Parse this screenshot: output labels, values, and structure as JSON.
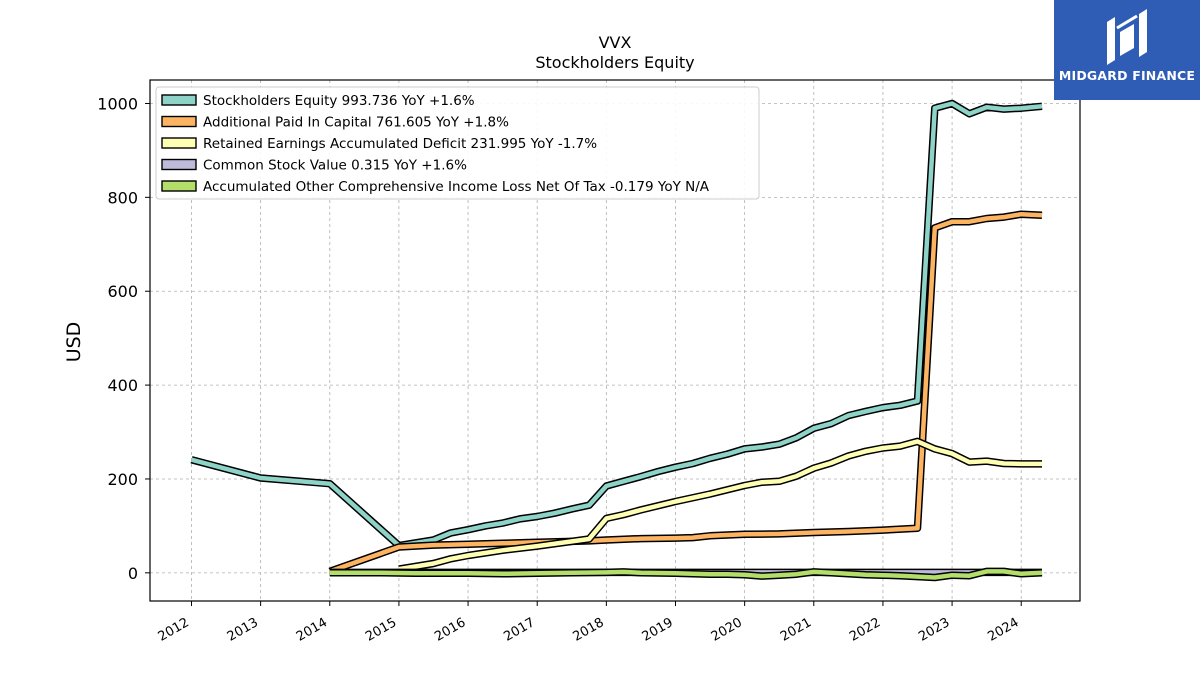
{
  "chart_data": {
    "type": "line",
    "title": "VVX",
    "subtitle": "Stockholders  Equity",
    "xlabel": "",
    "ylabel": "USD",
    "xlim": [
      2011.4,
      2024.85
    ],
    "ylim": [
      -60,
      1050
    ],
    "x_ticks": [
      2012,
      2013,
      2014,
      2015,
      2016,
      2017,
      2018,
      2019,
      2020,
      2021,
      2022,
      2023,
      2024
    ],
    "y_ticks": [
      0,
      200,
      400,
      600,
      800,
      1000
    ],
    "grid": true,
    "legend_position": "top-left",
    "series": [
      {
        "name": "Stockholders Equity  993.736 YoY +1.6%",
        "color": "#8dd3c7",
        "points": [
          [
            2012.0,
            241
          ],
          [
            2013.0,
            202
          ],
          [
            2014.0,
            190
          ],
          [
            2015.0,
            58
          ],
          [
            2015.5,
            70
          ],
          [
            2015.75,
            85
          ],
          [
            2016.0,
            92
          ],
          [
            2016.25,
            100
          ],
          [
            2016.5,
            106
          ],
          [
            2016.75,
            115
          ],
          [
            2017.0,
            120
          ],
          [
            2017.25,
            127
          ],
          [
            2017.5,
            136
          ],
          [
            2017.75,
            144
          ],
          [
            2018.0,
            185
          ],
          [
            2018.25,
            195
          ],
          [
            2018.5,
            205
          ],
          [
            2018.75,
            216
          ],
          [
            2019.0,
            225
          ],
          [
            2019.25,
            233
          ],
          [
            2019.5,
            244
          ],
          [
            2019.75,
            253
          ],
          [
            2020.0,
            264
          ],
          [
            2020.25,
            268
          ],
          [
            2020.5,
            274
          ],
          [
            2020.75,
            288
          ],
          [
            2021.0,
            308
          ],
          [
            2021.25,
            318
          ],
          [
            2021.5,
            335
          ],
          [
            2021.75,
            344
          ],
          [
            2022.0,
            352
          ],
          [
            2022.25,
            357
          ],
          [
            2022.5,
            366
          ],
          [
            2022.75,
            990
          ],
          [
            2023.0,
            1000
          ],
          [
            2023.25,
            978
          ],
          [
            2023.5,
            992
          ],
          [
            2023.75,
            988
          ],
          [
            2024.0,
            990
          ],
          [
            2024.3,
            994
          ]
        ]
      },
      {
        "name": "Additional Paid In Capital  761.605 YoY +1.8%",
        "color": "#fdb462",
        "points": [
          [
            2014.0,
            3
          ],
          [
            2015.0,
            55
          ],
          [
            2015.5,
            59
          ],
          [
            2016.0,
            61
          ],
          [
            2016.5,
            63
          ],
          [
            2017.0,
            65
          ],
          [
            2017.5,
            67
          ],
          [
            2017.75,
            68
          ],
          [
            2018.0,
            70
          ],
          [
            2018.5,
            73
          ],
          [
            2019.0,
            74
          ],
          [
            2019.25,
            75
          ],
          [
            2019.5,
            79
          ],
          [
            2020.0,
            82
          ],
          [
            2020.5,
            83
          ],
          [
            2021.0,
            86
          ],
          [
            2021.5,
            88
          ],
          [
            2022.0,
            91
          ],
          [
            2022.5,
            95
          ],
          [
            2022.75,
            735
          ],
          [
            2023.0,
            748
          ],
          [
            2023.25,
            748
          ],
          [
            2023.5,
            755
          ],
          [
            2023.75,
            758
          ],
          [
            2024.0,
            764
          ],
          [
            2024.3,
            762
          ]
        ]
      },
      {
        "name": "Retained Earnings Accumulated Deficit  231.995 YoY -1.7%",
        "color": "#ffffb3",
        "points": [
          [
            2015.0,
            8
          ],
          [
            2015.5,
            20
          ],
          [
            2015.75,
            30
          ],
          [
            2016.0,
            37
          ],
          [
            2016.5,
            48
          ],
          [
            2017.0,
            57
          ],
          [
            2017.5,
            67
          ],
          [
            2017.75,
            72
          ],
          [
            2018.0,
            116
          ],
          [
            2018.25,
            124
          ],
          [
            2018.5,
            134
          ],
          [
            2019.0,
            152
          ],
          [
            2019.5,
            168
          ],
          [
            2020.0,
            186
          ],
          [
            2020.25,
            193
          ],
          [
            2020.5,
            195
          ],
          [
            2020.75,
            206
          ],
          [
            2021.0,
            223
          ],
          [
            2021.25,
            234
          ],
          [
            2021.5,
            249
          ],
          [
            2021.75,
            259
          ],
          [
            2022.0,
            266
          ],
          [
            2022.25,
            270
          ],
          [
            2022.5,
            280
          ],
          [
            2022.75,
            264
          ],
          [
            2023.0,
            254
          ],
          [
            2023.25,
            236
          ],
          [
            2023.5,
            238
          ],
          [
            2023.75,
            233
          ],
          [
            2024.0,
            232
          ],
          [
            2024.3,
            232
          ]
        ]
      },
      {
        "name": "Common Stock Value  0.315 YoY +1.6%",
        "color": "#bebada",
        "points": [
          [
            2014.0,
            1
          ],
          [
            2015.0,
            1
          ],
          [
            2016.0,
            1
          ],
          [
            2017.0,
            1
          ],
          [
            2018.0,
            1
          ],
          [
            2019.0,
            1
          ],
          [
            2020.0,
            1
          ],
          [
            2021.0,
            1
          ],
          [
            2022.0,
            1
          ],
          [
            2022.75,
            1
          ],
          [
            2023.0,
            1
          ],
          [
            2023.5,
            1
          ],
          [
            2024.0,
            1
          ],
          [
            2024.3,
            1
          ]
        ]
      },
      {
        "name": "Accumulated Other Comprehensive Income Loss Net Of Tax  -0.179 YoY N/A",
        "color": "#b3de69",
        "points": [
          [
            2014.0,
            0
          ],
          [
            2014.75,
            0
          ],
          [
            2015.25,
            -1
          ],
          [
            2016.0,
            -1
          ],
          [
            2016.5,
            -2
          ],
          [
            2017.0,
            -1
          ],
          [
            2017.5,
            0
          ],
          [
            2018.0,
            1
          ],
          [
            2018.25,
            2
          ],
          [
            2018.5,
            0
          ],
          [
            2019.0,
            -1
          ],
          [
            2019.25,
            -2
          ],
          [
            2019.5,
            -3
          ],
          [
            2019.75,
            -3
          ],
          [
            2020.0,
            -4
          ],
          [
            2020.25,
            -7
          ],
          [
            2020.5,
            -5
          ],
          [
            2020.75,
            -3
          ],
          [
            2021.0,
            2
          ],
          [
            2021.25,
            0
          ],
          [
            2021.5,
            -2
          ],
          [
            2021.75,
            -4
          ],
          [
            2022.0,
            -5
          ],
          [
            2022.25,
            -6
          ],
          [
            2022.5,
            -8
          ],
          [
            2022.75,
            -10
          ],
          [
            2023.0,
            -5
          ],
          [
            2023.25,
            -6
          ],
          [
            2023.5,
            3
          ],
          [
            2023.75,
            3
          ],
          [
            2024.0,
            -2
          ],
          [
            2024.3,
            0
          ]
        ]
      }
    ]
  },
  "logo": {
    "text": "MIDGARD FINANCE",
    "icon": "midgard-logo-mark",
    "background": "#2f5db5"
  }
}
